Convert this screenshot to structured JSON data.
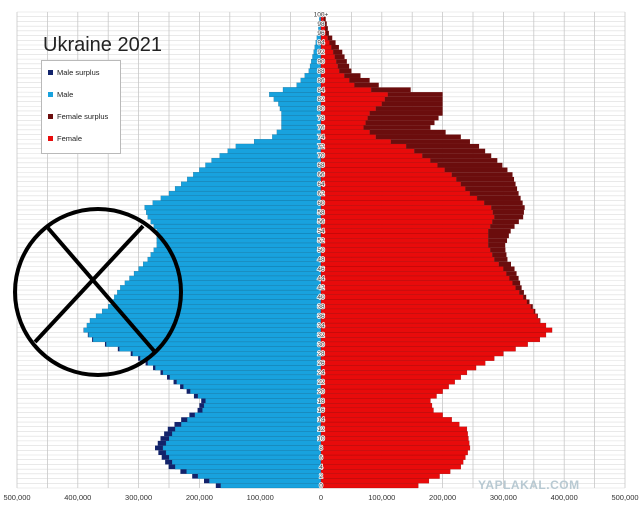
{
  "page": {
    "watermark": "YAPLAKAL.COM"
  },
  "chart_data": {
    "type": "bar",
    "orientation": "horizontal",
    "title": "Ukraine 2021",
    "x_tick_labels": [
      "500,000",
      "400,000",
      "300,000",
      "200,000",
      "100,000",
      "0",
      "100,000",
      "200,000",
      "300,000",
      "400,000",
      "500,000"
    ],
    "xlim": [
      -500000,
      500000
    ],
    "grid": true,
    "legend_position": "top-left",
    "legend": [
      {
        "name": "Male surplus",
        "color": "#12236b"
      },
      {
        "name": "Male",
        "color": "#18a2de"
      },
      {
        "name": "Female surplus",
        "color": "#6b0d0d"
      },
      {
        "name": "Female",
        "color": "#e80b0b"
      }
    ],
    "age_labels": [
      "0",
      "2",
      "4",
      "6",
      "8",
      "10",
      "12",
      "14",
      "16",
      "18",
      "20",
      "22",
      "24",
      "26",
      "28",
      "30",
      "32",
      "34",
      "36",
      "38",
      "40",
      "42",
      "44",
      "46",
      "48",
      "50",
      "52",
      "54",
      "56",
      "58",
      "60",
      "62",
      "64",
      "66",
      "68",
      "70",
      "72",
      "74",
      "76",
      "78",
      "80",
      "82",
      "84",
      "86",
      "88",
      "90",
      "92",
      "94",
      "96",
      "98",
      "100+"
    ],
    "male_anchors": [
      [
        0,
        165000
      ],
      [
        4,
        240000
      ],
      [
        8,
        260000
      ],
      [
        12,
        240000
      ],
      [
        14,
        220000
      ],
      [
        16,
        195000
      ],
      [
        18,
        190000
      ],
      [
        20,
        215000
      ],
      [
        24,
        260000
      ],
      [
        28,
        310000
      ],
      [
        31,
        375000
      ],
      [
        33,
        390000
      ],
      [
        35,
        380000
      ],
      [
        38,
        350000
      ],
      [
        42,
        330000
      ],
      [
        46,
        300000
      ],
      [
        48,
        285000
      ],
      [
        51,
        270000
      ],
      [
        54,
        270000
      ],
      [
        57,
        285000
      ],
      [
        59,
        290000
      ],
      [
        62,
        250000
      ],
      [
        66,
        210000
      ],
      [
        69,
        180000
      ],
      [
        72,
        140000
      ],
      [
        74,
        80000
      ],
      [
        76,
        65000
      ],
      [
        79,
        65000
      ],
      [
        81,
        70000
      ],
      [
        83,
        85000
      ],
      [
        85,
        40000
      ],
      [
        88,
        20000
      ],
      [
        92,
        12000
      ],
      [
        96,
        5000
      ],
      [
        100,
        2000
      ]
    ],
    "female_anchors": [
      [
        0,
        160000
      ],
      [
        4,
        230000
      ],
      [
        8,
        245000
      ],
      [
        12,
        240000
      ],
      [
        14,
        215000
      ],
      [
        16,
        185000
      ],
      [
        18,
        180000
      ],
      [
        20,
        200000
      ],
      [
        24,
        240000
      ],
      [
        28,
        300000
      ],
      [
        31,
        360000
      ],
      [
        33,
        380000
      ],
      [
        35,
        360000
      ],
      [
        38,
        345000
      ],
      [
        42,
        320000
      ],
      [
        46,
        300000
      ],
      [
        48,
        285000
      ],
      [
        51,
        275000
      ],
      [
        54,
        275000
      ],
      [
        57,
        285000
      ],
      [
        59,
        280000
      ],
      [
        62,
        245000
      ],
      [
        66,
        215000
      ],
      [
        69,
        180000
      ],
      [
        72,
        140000
      ],
      [
        74,
        90000
      ],
      [
        76,
        70000
      ],
      [
        79,
        80000
      ],
      [
        81,
        100000
      ],
      [
        83,
        110000
      ],
      [
        85,
        55000
      ],
      [
        88,
        30000
      ],
      [
        92,
        20000
      ],
      [
        96,
        8000
      ],
      [
        100,
        3000
      ]
    ],
    "male_surplus_anchors": [
      [
        0,
        8000
      ],
      [
        6,
        12000
      ],
      [
        10,
        14000
      ],
      [
        16,
        8000
      ],
      [
        20,
        6000
      ],
      [
        24,
        4000
      ],
      [
        28,
        3000
      ],
      [
        34,
        0
      ]
    ],
    "female_surplus_anchors": [
      [
        0,
        0
      ],
      [
        34,
        0
      ],
      [
        40,
        5000
      ],
      [
        44,
        15000
      ],
      [
        50,
        25000
      ],
      [
        55,
        40000
      ],
      [
        59,
        55000
      ],
      [
        62,
        80000
      ],
      [
        66,
        100000
      ],
      [
        69,
        110000
      ],
      [
        72,
        120000
      ],
      [
        74,
        140000
      ],
      [
        76,
        110000
      ],
      [
        79,
        120000
      ],
      [
        81,
        100000
      ],
      [
        83,
        90000
      ],
      [
        85,
        40000
      ],
      [
        88,
        20000
      ],
      [
        92,
        15000
      ],
      [
        96,
        5000
      ],
      [
        100,
        3000
      ]
    ]
  }
}
